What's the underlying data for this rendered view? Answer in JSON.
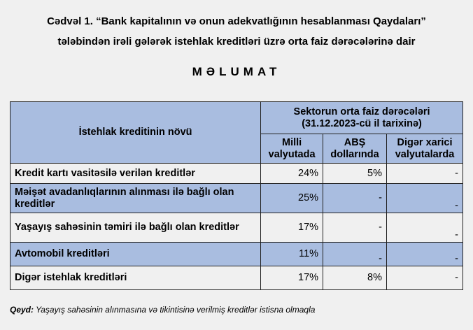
{
  "title_line1": "Cədvəl 1. “Bank kapitalının və onun adekvatlığının hesablanması Qaydaları”",
  "title_line2": "tələbindən irəli gələrək istehlak kreditləri üzrə orta faiz dərəcələrinə dair",
  "heading": "MƏLUMAT",
  "table": {
    "col_type": "İstehlak kreditinin növü",
    "group_header_1": "Sektorun orta faiz dərəcələri",
    "group_header_2": "(31.12.2023-cü il tarixinə)",
    "cols": [
      [
        "Milli",
        "valyutada"
      ],
      [
        "ABŞ",
        "dollarında"
      ],
      [
        "Digər xarici",
        "valyutalarda"
      ]
    ],
    "rows": [
      {
        "name": "Kredit kartı vasitəsilə verilən kreditlər",
        "values": [
          "24%",
          "5%",
          "-"
        ]
      },
      {
        "name": "Məişət avadanlıqlarının alınması ilə bağlı olan kreditlər",
        "values": [
          "25%",
          "-",
          "-"
        ]
      },
      {
        "name": "Yaşayış sahəsinin təmiri ilə bağlı olan kreditlər",
        "values": [
          "17%",
          "-",
          "-"
        ]
      },
      {
        "name": "Avtomobil kreditləri",
        "values": [
          "11%",
          "-",
          "-"
        ]
      },
      {
        "name": "Digər istehlak kreditləri",
        "values": [
          "17%",
          "8%",
          "-"
        ]
      }
    ],
    "shade_color": "#a9bde0"
  },
  "note_label": "Qeyd:",
  "note_text": " Yaşayış sahəsinin alınmasına və tikintisinə verilmiş kreditlər istisna olmaqla"
}
